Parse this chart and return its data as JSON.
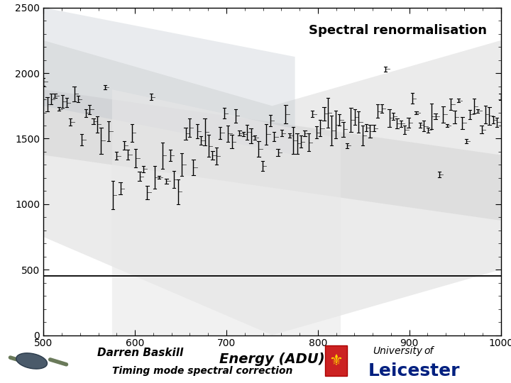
{
  "title": "Spectral renormalisation",
  "xlabel": "Energy (ADU)",
  "xlim": [
    500,
    1000
  ],
  "ylim": [
    0,
    2500
  ],
  "hline_y": 450,
  "line_color": "#000000",
  "hline_color": "#000000",
  "title_fontsize": 13,
  "xlabel_fontsize": 14,
  "footer_text1": "Darren Baskill",
  "footer_text2": "Timing mode spectral correction",
  "univ_text1": "University",
  "univ_text2": "of",
  "univ_text3": "Leicester",
  "seed": 7,
  "n_points": 120,
  "bg_alpha": 0.25
}
